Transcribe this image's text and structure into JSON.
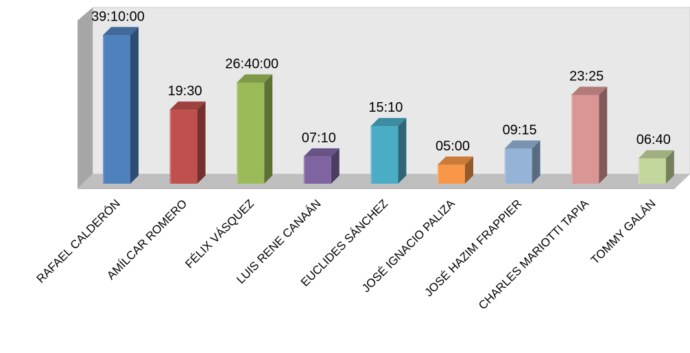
{
  "chart_data": {
    "type": "bar",
    "style": "3d-column",
    "categories": [
      "RAFAEL CALDERÓN",
      "AMÍLCAR ROMERO",
      "FÉLIX  VÁSQUEZ",
      "LUIS RENE CANAÁN",
      "EUCLIDES SÁNCHEZ",
      "JOSÉ IGNACIO PALIZA",
      "JOSÉ  HAZIM FRAPPIER",
      "CHARLES MARIOTTI TAPIA",
      "TOMMY GALÁN"
    ],
    "values": [
      39.17,
      19.5,
      26.67,
      7.17,
      15.17,
      5.0,
      9.25,
      23.42,
      6.67
    ],
    "data_labels": [
      "39:10:00",
      "19:30",
      "26:40:00",
      "07:10",
      "15:10",
      "05:00",
      "09:15",
      "23:25",
      "06:40"
    ],
    "colors": [
      "#4F81BD",
      "#C0504D",
      "#9BBB59",
      "#8064A2",
      "#4BACC6",
      "#F79646",
      "#95B3D7",
      "#D99694",
      "#C3D69B"
    ],
    "ylim": [
      0,
      40
    ],
    "grid": false,
    "legend": "none"
  }
}
